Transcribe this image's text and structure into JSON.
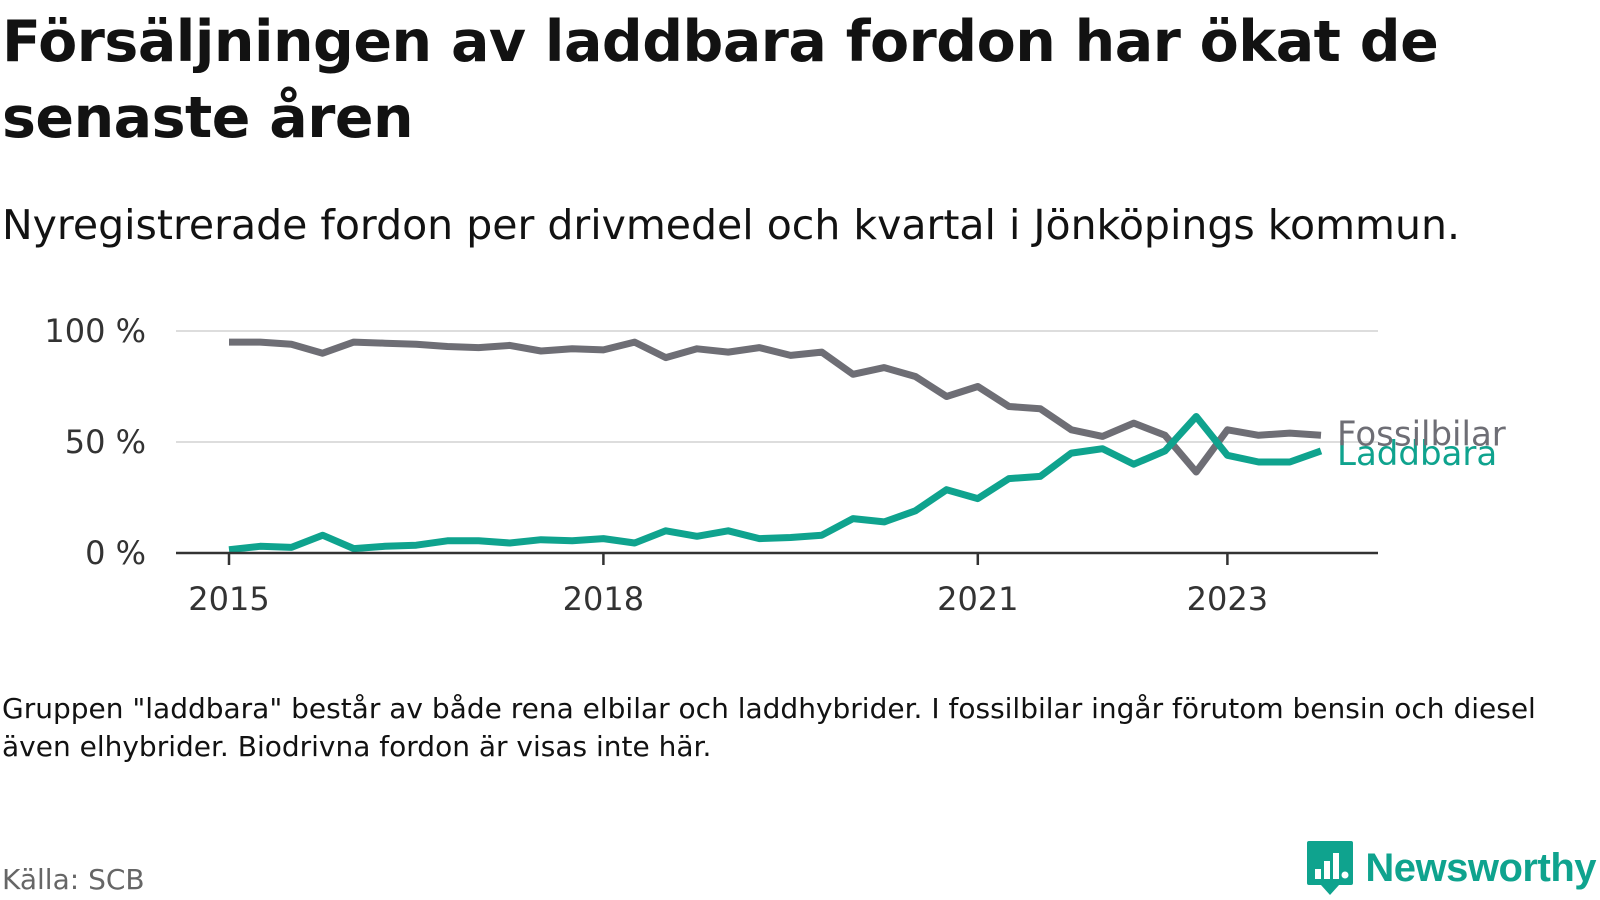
{
  "header": {
    "title": "Försäljningen av laddbara fordon har ökat de senaste åren",
    "subtitle": "Nyregistrerade fordon per drivmedel och kvartal i Jönköpings kommun."
  },
  "footer": {
    "note": "Gruppen \"laddbara\" består av både rena elbilar och laddhybrider. I fossilbilar ingår förutom bensin och diesel även elhybrider. Biodrivna fordon är visas inte här.",
    "source": "Källa: SCB",
    "brand": "Newsworthy"
  },
  "colors": {
    "fossil": "#6e6e75",
    "laddbara": "#0fa38e",
    "grid": "#dddddd",
    "axis": "#333333"
  },
  "chart_data": {
    "type": "line",
    "title": "Försäljningen av laddbara fordon har ökat de senaste åren",
    "xlabel": "",
    "ylabel": "",
    "ylim": [
      0,
      100
    ],
    "xlim": [
      2015,
      2023.75
    ],
    "y_ticks": [
      0,
      50,
      100
    ],
    "y_tick_labels": [
      "0 %",
      "50 %",
      "100 %"
    ],
    "x_ticks": [
      2015,
      2018,
      2021,
      2023
    ],
    "x_tick_labels": [
      "2015",
      "2018",
      "2021",
      "2023"
    ],
    "grid": true,
    "x": [
      2015.0,
      2015.25,
      2015.5,
      2015.75,
      2016.0,
      2016.25,
      2016.5,
      2016.75,
      2017.0,
      2017.25,
      2017.5,
      2017.75,
      2018.0,
      2018.25,
      2018.5,
      2018.75,
      2019.0,
      2019.25,
      2019.5,
      2019.75,
      2020.0,
      2020.25,
      2020.5,
      2020.75,
      2021.0,
      2021.25,
      2021.5,
      2021.75,
      2022.0,
      2022.25,
      2022.5,
      2022.75,
      2023.0,
      2023.25,
      2023.5,
      2023.75
    ],
    "series": [
      {
        "name": "Fossilbilar",
        "color": "#6e6e75",
        "values": [
          95,
          95,
          94,
          90,
          95,
          94.5,
          94,
          93,
          92.5,
          93.5,
          91,
          92,
          91.5,
          95,
          88,
          92,
          90.5,
          92.5,
          89,
          90.5,
          80.5,
          83.5,
          79.5,
          70.5,
          75,
          66,
          65,
          55.5,
          52.5,
          58.5,
          53,
          36.5,
          55.5,
          53,
          54,
          53
        ]
      },
      {
        "name": "Laddbara",
        "color": "#0fa38e",
        "values": [
          1.5,
          3,
          2.5,
          8,
          2,
          3,
          3.5,
          5.5,
          5.5,
          4.5,
          6,
          5.5,
          6.5,
          4.5,
          10,
          7.5,
          10,
          6.5,
          7,
          8,
          15.5,
          14,
          19,
          28.5,
          24.5,
          33.5,
          34.5,
          45,
          47,
          40,
          46,
          61.5,
          44,
          41,
          41,
          46
        ]
      }
    ]
  }
}
